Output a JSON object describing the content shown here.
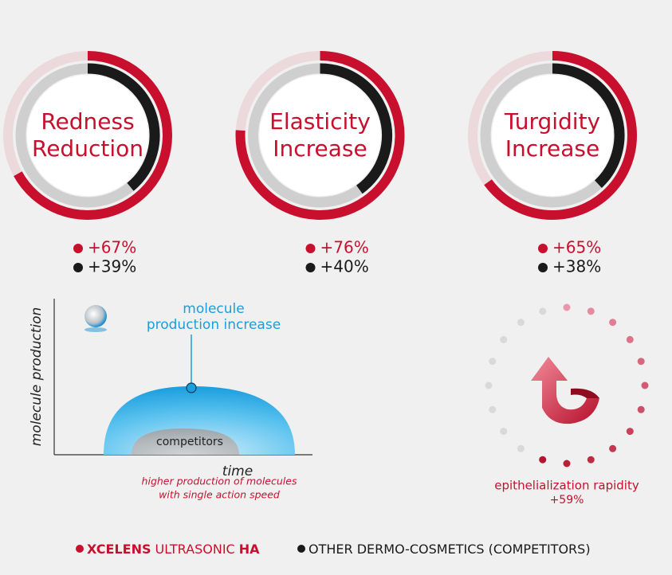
{
  "chart_data": [
    {
      "type": "radial-bar",
      "title": [
        "Redness",
        "Reduction"
      ],
      "rlim": [
        0,
        100
      ],
      "series": [
        {
          "color": "#c8102e",
          "track": "#ecd9dc",
          "values": [
            67
          ],
          "value_labels": [
            "+67%"
          ]
        },
        {
          "color": "#1a1a1a",
          "track": "#cfcfcf",
          "values": [
            39
          ],
          "value_labels": [
            "+39%"
          ]
        }
      ]
    },
    {
      "type": "radial-bar",
      "title": [
        "Elasticity",
        "Increase"
      ],
      "rlim": [
        0,
        100
      ],
      "series": [
        {
          "color": "#c8102e",
          "track": "#ecd9dc",
          "values": [
            76
          ],
          "value_labels": [
            "+76%"
          ]
        },
        {
          "color": "#1a1a1a",
          "track": "#cfcfcf",
          "values": [
            40
          ],
          "value_labels": [
            "+40%"
          ]
        }
      ]
    },
    {
      "type": "radial-bar",
      "title": [
        "Turgidity",
        "Increase"
      ],
      "rlim": [
        0,
        100
      ],
      "series": [
        {
          "color": "#c8102e",
          "track": "#ecd9dc",
          "values": [
            65
          ],
          "value_labels": [
            "+65%"
          ]
        },
        {
          "color": "#1a1a1a",
          "track": "#cfcfcf",
          "values": [
            38
          ],
          "value_labels": [
            "+38%"
          ]
        }
      ]
    },
    {
      "type": "schematic-area",
      "y_label": "molecule production",
      "x_label": "time",
      "annotation": [
        "molecule",
        "production increase"
      ],
      "inner_label": "competitors",
      "caption": [
        "higher production of molecules",
        "with single action speed"
      ]
    },
    {
      "type": "dot-ring",
      "rlim": [
        0,
        100
      ],
      "values": [
        59
      ],
      "value_labels": [
        "+59%"
      ],
      "label": "epithelialization rapidity"
    }
  ],
  "legend": {
    "items": [
      {
        "color": "#c8102e",
        "parts": [
          "XCELENS",
          "ULTRASONIC",
          "HA"
        ]
      },
      {
        "color": "#1a1a1a",
        "parts": [
          "OTHER DERMO-COSMETICS (COMPETITORS)"
        ]
      }
    ]
  }
}
